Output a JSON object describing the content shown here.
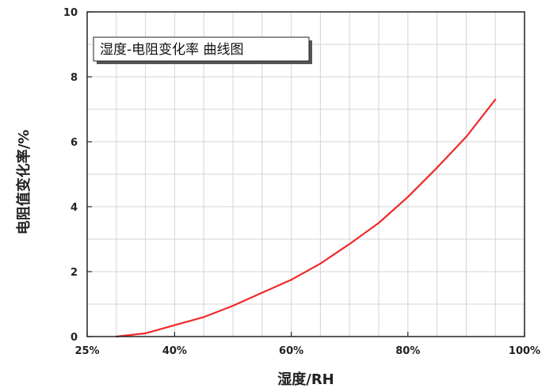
{
  "chart_data": {
    "type": "line",
    "title": "",
    "annotation": "湿度-电阻变化率 曲线图",
    "xlabel": "湿度/RH",
    "ylabel": "电阻值变化率/%",
    "xlim": [
      25,
      100
    ],
    "ylim": [
      0,
      10
    ],
    "xticks": [
      "25%",
      "40%",
      "60%",
      "80%",
      "100%"
    ],
    "xtick_values": [
      25,
      40,
      60,
      80,
      100
    ],
    "yticks": [
      "0",
      "2",
      "4",
      "6",
      "8",
      "10"
    ],
    "ytick_values": [
      0,
      2,
      4,
      6,
      8,
      10
    ],
    "grid": true,
    "series": [
      {
        "color": "#ee2a2a",
        "x": [
          30,
          35,
          40,
          45,
          50,
          55,
          60,
          65,
          70,
          75,
          80,
          85,
          90,
          95
        ],
        "y": [
          0,
          0.1,
          0.35,
          0.6,
          0.95,
          1.35,
          1.75,
          2.25,
          2.85,
          3.5,
          4.3,
          5.2,
          6.15,
          7.3
        ]
      }
    ]
  }
}
